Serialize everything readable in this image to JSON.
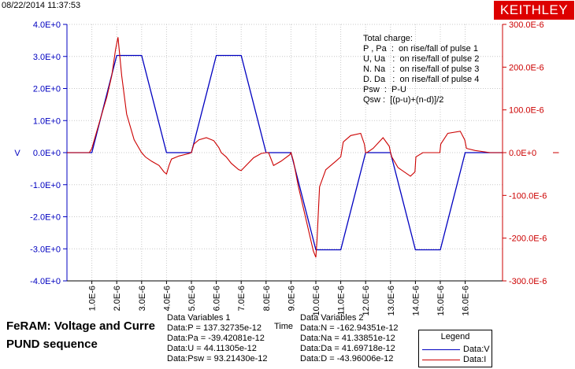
{
  "timestamp": "08/22/2014 11:37:53",
  "brand": "KEITHLEY",
  "colors": {
    "voltage": "#0000c0",
    "current": "#cc0000",
    "brand": "#dd0000"
  },
  "chart_data": {
    "type": "line",
    "annotation_lines": [
      "Total charge:",
      "P , Pa  :  on rise/fall of pulse 1",
      "U, Ua   :  on rise/fall of pulse 2",
      "N. Na   :  on rise/fall of pulse 3",
      "D. Da   :  on rise/fall of pulse 4",
      "Psw  :  P-U",
      "Qsw :  [(p-u)+(n-d)]/2"
    ],
    "x_label": "Time",
    "left_axis_label": "V",
    "right_axis_label": "I",
    "left_ylim": [
      -4.0,
      4.0
    ],
    "right_ylim": [
      -0.0003,
      0.0003
    ],
    "left_ticks": [
      "4.0E+0",
      "3.0E+0",
      "2.0E+0",
      "1.0E+0",
      "0.0E+0",
      "-1.0E+0",
      "-2.0E+0",
      "-3.0E+0",
      "-4.0E+0"
    ],
    "right_ticks": [
      "300.0E-6",
      "200.0E-6",
      "100.0E-6",
      "0.0E+0",
      "-100.0E-6",
      "-200.0E-6",
      "-300.0E-6"
    ],
    "x_ticks": [
      "1.0E-6",
      "2.0E-6",
      "3.0E-6",
      "4.0E-6",
      "5.0E-6",
      "6.0E-6",
      "7.0E-6",
      "8.0E-6",
      "9.0E-6",
      "10.0E-6",
      "11.0E-6",
      "12.0E-6",
      "13.0E-6",
      "14.0E-6",
      "15.0E-6",
      "16.0E-6"
    ],
    "xlim": [
      0,
      17.5
    ],
    "voltage": {
      "name": "Data:V",
      "x": [
        0,
        1,
        2,
        3,
        4,
        5,
        6,
        7,
        8,
        9,
        10,
        11,
        12,
        13,
        14,
        15,
        16,
        17.5
      ],
      "y": [
        0,
        0,
        3.03,
        3.03,
        0,
        0,
        3.03,
        3.03,
        0,
        0,
        -3.03,
        -3.03,
        0,
        0,
        -3.03,
        -3.03,
        0,
        0
      ]
    },
    "current": {
      "name": "Data:I",
      "x": [
        0,
        0.9,
        1.0,
        1.2,
        1.4,
        1.6,
        1.8,
        1.95,
        2.05,
        2.2,
        2.4,
        2.7,
        2.9,
        3.0,
        3.15,
        3.4,
        3.7,
        3.9,
        4.0,
        4.1,
        4.2,
        4.5,
        4.9,
        5.0,
        5.1,
        5.3,
        5.6,
        5.9,
        6.1,
        6.2,
        6.4,
        6.6,
        6.9,
        7.0,
        7.2,
        7.5,
        7.8,
        8.0,
        8.1,
        8.3,
        8.6,
        8.95,
        9.0,
        9.1,
        9.3,
        9.5,
        9.7,
        9.9,
        10.0,
        10.05,
        10.15,
        10.4,
        10.8,
        11.0,
        11.1,
        11.4,
        11.8,
        11.95,
        12.0,
        12.05,
        12.3,
        12.7,
        12.95,
        13.0,
        13.05,
        13.3,
        13.8,
        13.98,
        14.02,
        14.3,
        14.8,
        14.98,
        15.02,
        15.3,
        15.8,
        15.98,
        16.05,
        16.4,
        17.0,
        17.5
      ],
      "y": [
        0,
        0,
        1e-05,
        5e-05,
        9e-05,
        0.00013,
        0.00018,
        0.00024,
        0.00027,
        0.00018,
        9e-05,
        3e-05,
        1e-05,
        0,
        -1e-05,
        -2e-05,
        -3e-05,
        -4.5e-05,
        -5e-05,
        -3e-05,
        -1.5e-05,
        -8e-06,
        -2e-06,
        0,
        2e-05,
        3e-05,
        3.5e-05,
        2.8e-05,
        1.2e-05,
        0,
        -1e-05,
        -2.5e-05,
        -4e-05,
        -4.2e-05,
        -3e-05,
        -1.2e-05,
        -2e-06,
        0,
        0,
        -3e-05,
        -2e-05,
        -5e-06,
        0,
        -2e-05,
        -8e-05,
        -0.00013,
        -0.00018,
        -0.00023,
        -0.000245,
        -0.0002,
        -8e-05,
        -4e-05,
        -2e-05,
        -1e-05,
        2.5e-05,
        4e-05,
        4.5e-05,
        2e-05,
        0,
        0,
        1e-05,
        3.5e-05,
        1.5e-05,
        0,
        -1e-05,
        -3.5e-05,
        -5.5e-05,
        -4.5e-05,
        -1e-05,
        0,
        0,
        0,
        2e-05,
        4.5e-05,
        5e-05,
        3e-05,
        1e-05,
        5e-06,
        0,
        0
      ]
    }
  },
  "title_lines": [
    "FeRAM: Voltage and Curre",
    "PUND sequence"
  ],
  "variables1": {
    "header": "Data Variables 1",
    "rows": [
      "Data:P = 137.32735e-12",
      "Data:Pa = -39.42081e-12",
      "Data:U = 44.11305e-12",
      "Data:Psw = 93.21430e-12"
    ]
  },
  "variables2": {
    "header": "Data Variables 2",
    "rows": [
      "Data:N = -162.94351e-12",
      "Data:Na = 41.33851e-12",
      "Data:Da = 41.69718e-12",
      "Data:D = -43.96006e-12"
    ]
  },
  "legend": {
    "title": "Legend",
    "items": [
      {
        "label": "Data:V",
        "color": "#0000c0"
      },
      {
        "label": "Data:I",
        "color": "#cc0000"
      }
    ]
  }
}
